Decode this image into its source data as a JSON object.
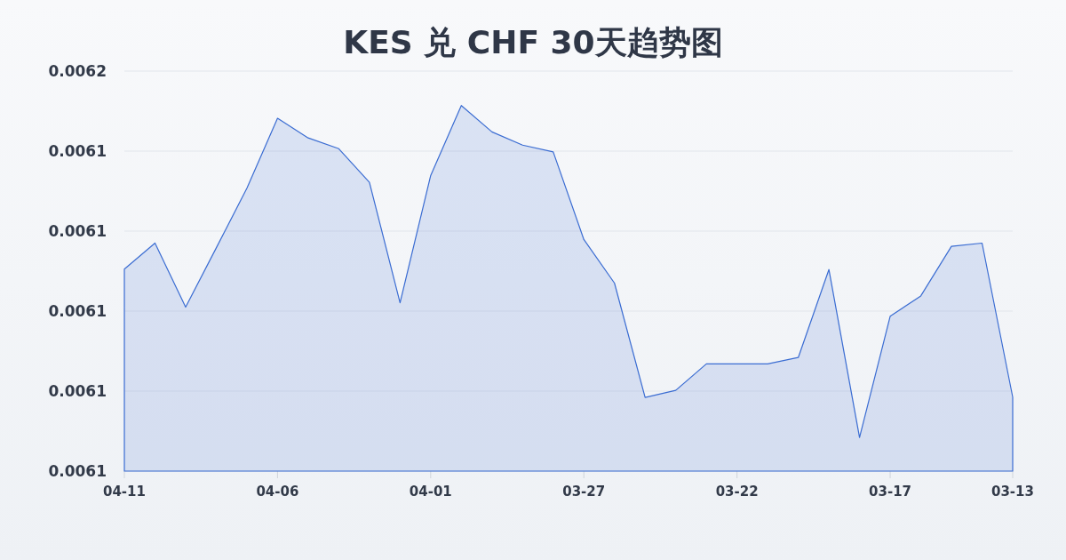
{
  "chart_data": {
    "type": "area",
    "title": "KES 兑 CHF 30天趋势图",
    "categories": [
      "04-11",
      null,
      null,
      null,
      null,
      "04-06",
      null,
      null,
      null,
      null,
      "04-01",
      null,
      null,
      null,
      null,
      "03-27",
      null,
      null,
      null,
      null,
      "03-22",
      null,
      null,
      null,
      null,
      "03-17",
      null,
      null,
      null,
      "03-13"
    ],
    "series": [
      {
        "color": "#3a6cd2",
        "values": [
          0.0061105,
          0.006117,
          0.006101,
          0.0061158,
          0.0061307,
          0.0061482,
          0.0061433,
          0.0061406,
          0.0061322,
          0.0061021,
          0.0061339,
          0.0061514,
          0.0061448,
          0.0061415,
          0.0061398,
          0.0061179,
          0.006107,
          0.0060784,
          0.0060802,
          0.0060868,
          0.0060868,
          0.0060868,
          0.0060884,
          0.0061104,
          0.0060684,
          0.0060987,
          0.0061038,
          0.0061162,
          0.006117,
          0.0060785
        ]
      }
    ],
    "ylim": [
      0.00606,
      0.00616
    ],
    "yticks": [
      {
        "value": 0.00606,
        "label": "0.0061"
      },
      {
        "value": 0.00608,
        "label": "0.0061"
      },
      {
        "value": 0.0061,
        "label": "0.0061"
      },
      {
        "value": 0.00612,
        "label": "0.0061"
      },
      {
        "value": 0.00614,
        "label": "0.0061"
      },
      {
        "value": 0.00616,
        "label": "0.0062"
      }
    ],
    "grid": "y"
  }
}
